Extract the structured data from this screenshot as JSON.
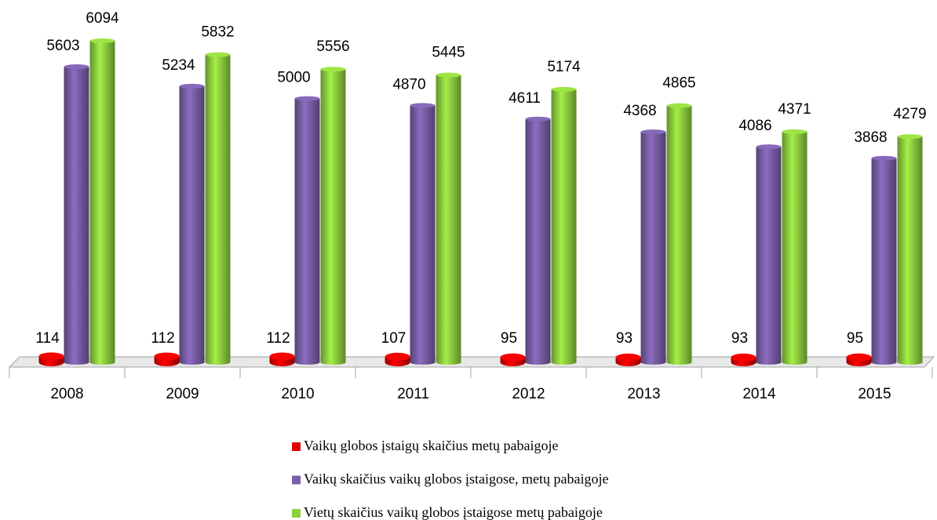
{
  "chart_data": {
    "type": "bar",
    "categories": [
      "2008",
      "2009",
      "2010",
      "2011",
      "2012",
      "2013",
      "2014",
      "2015"
    ],
    "series": [
      {
        "name": "Vaikų globos įstaigų skaičius metų pabaigoje",
        "color": "#e00000",
        "values": [
          114,
          112,
          112,
          107,
          95,
          93,
          93,
          95
        ]
      },
      {
        "name": "Vaikų skaičius vaikų globos įstaigose, metų pabaigoje",
        "color": "#7a5fa8",
        "values": [
          5603,
          5234,
          5000,
          4870,
          4611,
          4368,
          4086,
          3868
        ]
      },
      {
        "name": "Vietų skaičius vaikų globos įstaigose metų pabaigoje",
        "color": "#8fd03f",
        "values": [
          6094,
          5832,
          5556,
          5445,
          5174,
          4865,
          4371,
          4279
        ]
      }
    ],
    "legend": "bottom"
  }
}
